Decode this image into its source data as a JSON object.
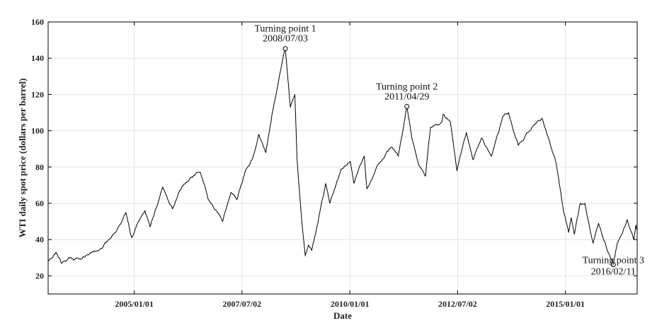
{
  "chart_data": {
    "type": "line",
    "title": "",
    "xlabel": "Date",
    "ylabel": "WTI daily spot price (dollars per barrel)",
    "xlim": [
      "2003/01/02",
      "2016/08/31"
    ],
    "ylim": [
      10,
      160
    ],
    "grid": true,
    "xticks": [
      {
        "date": "2005/01/01",
        "label": "2005/01/01"
      },
      {
        "date": "2007/07/02",
        "label": "2007/07/02"
      },
      {
        "date": "2010/01/01",
        "label": "2010/01/01"
      },
      {
        "date": "2012/07/02",
        "label": "2012/07/02"
      },
      {
        "date": "2015/01/01",
        "label": "2015/01/01"
      }
    ],
    "yticks": [
      20,
      40,
      60,
      80,
      100,
      120,
      140,
      160
    ],
    "series": [
      {
        "points": [
          [
            "2003/01/02",
            28
          ],
          [
            "2003/03/10",
            33
          ],
          [
            "2003/04/25",
            27
          ],
          [
            "2003/07/01",
            30
          ],
          [
            "2003/10/01",
            29
          ],
          [
            "2004/01/02",
            33
          ],
          [
            "2004/04/01",
            35
          ],
          [
            "2004/06/01",
            40
          ],
          [
            "2004/08/20",
            47
          ],
          [
            "2004/10/22",
            55
          ],
          [
            "2004/12/10",
            41
          ],
          [
            "2005/01/20",
            48
          ],
          [
            "2005/04/01",
            56
          ],
          [
            "2005/05/15",
            47
          ],
          [
            "2005/08/30",
            69
          ],
          [
            "2005/11/20",
            57
          ],
          [
            "2006/01/20",
            67
          ],
          [
            "2006/04/20",
            74
          ],
          [
            "2006/07/15",
            77
          ],
          [
            "2006/09/15",
            63
          ],
          [
            "2006/11/01",
            58
          ],
          [
            "2007/01/18",
            50
          ],
          [
            "2007/04/01",
            66
          ],
          [
            "2007/05/20",
            62
          ],
          [
            "2007/08/01",
            78
          ],
          [
            "2007/10/01",
            85
          ],
          [
            "2007/11/20",
            98
          ],
          [
            "2008/01/20",
            88
          ],
          [
            "2008/03/15",
            110
          ],
          [
            "2008/05/20",
            132
          ],
          [
            "2008/07/03",
            145.3
          ],
          [
            "2008/08/15",
            113
          ],
          [
            "2008/09/22",
            120
          ],
          [
            "2008/10/10",
            85
          ],
          [
            "2008/11/20",
            50
          ],
          [
            "2008/12/19",
            31
          ],
          [
            "2009/01/15",
            37
          ],
          [
            "2009/02/12",
            34
          ],
          [
            "2009/04/01",
            48
          ],
          [
            "2009/06/10",
            71
          ],
          [
            "2009/07/15",
            60
          ],
          [
            "2009/10/20",
            79
          ],
          [
            "2010/01/06",
            83
          ],
          [
            "2010/02/05",
            71
          ],
          [
            "2010/05/03",
            86
          ],
          [
            "2010/05/25",
            68
          ],
          [
            "2010/08/15",
            80
          ],
          [
            "2010/12/20",
            91
          ],
          [
            "2011/02/15",
            86
          ],
          [
            "2011/04/29",
            113.4
          ],
          [
            "2011/06/10",
            96
          ],
          [
            "2011/08/08",
            81
          ],
          [
            "2011/10/04",
            75
          ],
          [
            "2011/11/16",
            102
          ],
          [
            "2012/02/20",
            105
          ],
          [
            "2012/03/01",
            109
          ],
          [
            "2012/05/01",
            105
          ],
          [
            "2012/06/26",
            78
          ],
          [
            "2012/09/14",
            99
          ],
          [
            "2012/11/10",
            84
          ],
          [
            "2013/01/20",
            96
          ],
          [
            "2013/04/15",
            86
          ],
          [
            "2013/07/20",
            108
          ],
          [
            "2013/09/06",
            110
          ],
          [
            "2013/11/28",
            92
          ],
          [
            "2014/02/01",
            98
          ],
          [
            "2014/04/20",
            104
          ],
          [
            "2014/06/15",
            107
          ],
          [
            "2014/08/15",
            95
          ],
          [
            "2014/10/15",
            82
          ],
          [
            "2014/12/15",
            56
          ],
          [
            "2015/01/28",
            44
          ],
          [
            "2015/02/20",
            52
          ],
          [
            "2015/03/17",
            43
          ],
          [
            "2015/05/06",
            60
          ],
          [
            "2015/06/15",
            60
          ],
          [
            "2015/08/24",
            38
          ],
          [
            "2015/10/09",
            49
          ],
          [
            "2015/12/21",
            34
          ],
          [
            "2016/02/11",
            26.2
          ],
          [
            "2016/03/15",
            38
          ],
          [
            "2016/04/15",
            42
          ],
          [
            "2016/06/08",
            51
          ],
          [
            "2016/08/03",
            40
          ],
          [
            "2016/08/20",
            48
          ],
          [
            "2016/08/31",
            45
          ]
        ]
      }
    ],
    "annotations": [
      {
        "date": "2008/07/03",
        "value": 145.3,
        "line1": "Turning point 1",
        "line2": "2008/07/03"
      },
      {
        "date": "2011/04/29",
        "value": 113.4,
        "line1": "Turning point 2",
        "line2": "2011/04/29"
      },
      {
        "date": "2016/02/11",
        "value": 26.2,
        "line1": "Turning point 3",
        "line2": "2016/02/11"
      }
    ]
  }
}
